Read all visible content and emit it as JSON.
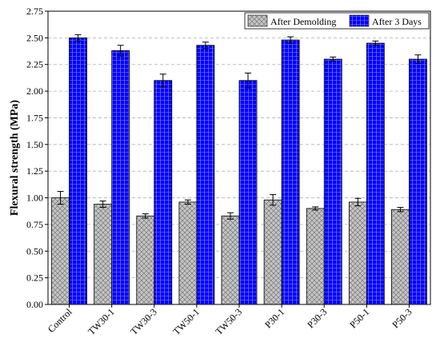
{
  "chart_data": {
    "type": "bar",
    "title": "",
    "xlabel": "",
    "ylabel": "Flexural strength (MPa)",
    "ylim": [
      0,
      2.75
    ],
    "yticks": [
      "0.00",
      "0.25",
      "0.50",
      "0.75",
      "1.00",
      "1.25",
      "1.50",
      "1.75",
      "2.00",
      "2.25",
      "2.50",
      "2.75"
    ],
    "grid": "horizontal dashed",
    "legend_position": "top-right",
    "categories": [
      "Control",
      "TW30-1",
      "TW30-3",
      "TW50-1",
      "TW50-3",
      "P30-1",
      "P30-3",
      "P50-1",
      "P50-3"
    ],
    "series": [
      {
        "name": "After Demolding",
        "color": "#c0c0c0",
        "pattern": "crosshatch",
        "values": [
          1.0,
          0.94,
          0.83,
          0.96,
          0.83,
          0.98,
          0.9,
          0.96,
          0.89
        ],
        "errors": [
          0.06,
          0.03,
          0.02,
          0.02,
          0.03,
          0.05,
          0.015,
          0.035,
          0.02
        ]
      },
      {
        "name": "After 3 Days",
        "color": "#0000ff",
        "pattern": "grid",
        "values": [
          2.5,
          2.38,
          2.1,
          2.43,
          2.1,
          2.48,
          2.3,
          2.45,
          2.3
        ],
        "errors": [
          0.03,
          0.05,
          0.06,
          0.03,
          0.07,
          0.03,
          0.02,
          0.02,
          0.04
        ]
      }
    ]
  }
}
